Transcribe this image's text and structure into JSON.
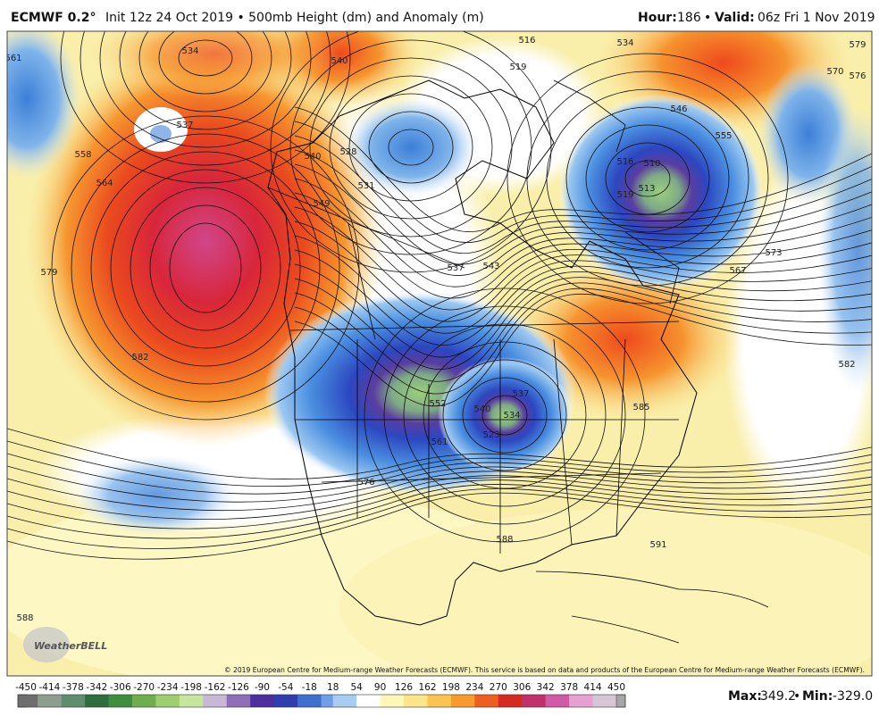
{
  "header": {
    "model": "ECMWF 0.2°",
    "init": "Init 12z 24 Oct 2019 • 500mb Height (dm) and Anomaly (m)",
    "hour_label": "Hour:",
    "hour": "186",
    "separator": "•",
    "valid_label": "Valid:",
    "valid": "06z Fri 1 Nov 2019"
  },
  "map": {
    "contour_labels": [
      "561",
      "534",
      "540",
      "537",
      "558",
      "564",
      "540",
      "528",
      "531",
      "549",
      "579",
      "582",
      "537",
      "543",
      "516",
      "519",
      "534",
      "579",
      "570",
      "576",
      "546",
      "555",
      "510",
      "516",
      "513",
      "519",
      "573",
      "567",
      "582",
      "585",
      "591",
      "576",
      "561",
      "552",
      "540",
      "534",
      "537",
      "523",
      "588",
      "588"
    ],
    "logo": "WeatherBELL",
    "copyright": "© 2019 European Centre for Medium-range Weather Forecasts (ECMWF). This service is based on data and products of the European Centre for Medium-range Weather Forecasts (ECMWF)."
  },
  "colorbar": {
    "labels": [
      "-450",
      "-414",
      "-378",
      "-342",
      "-306",
      "-270",
      "-234",
      "-198",
      "-162",
      "-126",
      "-90",
      "-54",
      "-18",
      "18",
      "54",
      "90",
      "126",
      "162",
      "198",
      "234",
      "270",
      "306",
      "342",
      "378",
      "414",
      "450"
    ]
  },
  "stats": {
    "max_label": "Max:",
    "max": "349.2",
    "separator": "•",
    "min_label": "Min:",
    "min": "-329.0"
  }
}
